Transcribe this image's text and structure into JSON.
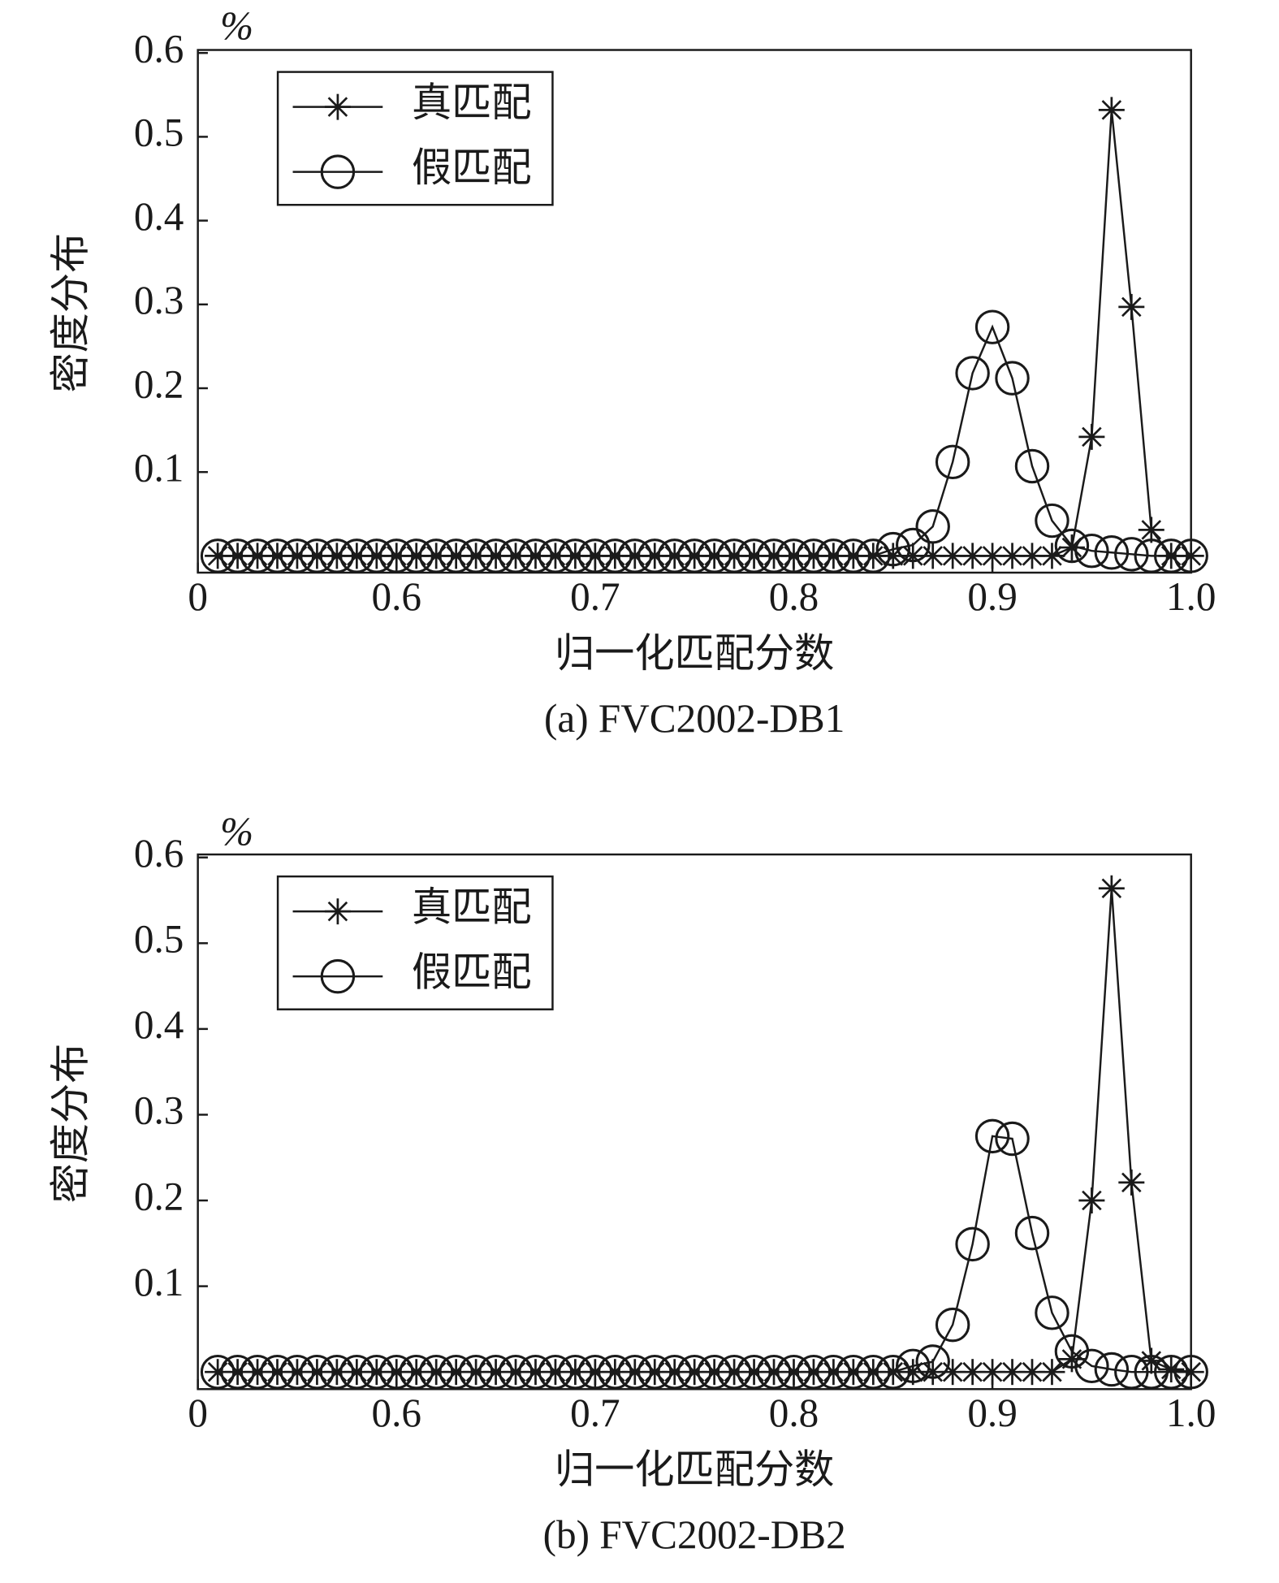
{
  "chart_data": [
    {
      "type": "line",
      "title": "(a) FVC2002-DB1",
      "unit_label": "%",
      "ylabel": "密度分布",
      "xlabel": "归一化匹配分数",
      "x": [
        0.51,
        0.52,
        0.53,
        0.54,
        0.55,
        0.56,
        0.57,
        0.58,
        0.59,
        0.6,
        0.61,
        0.62,
        0.63,
        0.64,
        0.65,
        0.66,
        0.67,
        0.68,
        0.69,
        0.7,
        0.71,
        0.72,
        0.73,
        0.74,
        0.75,
        0.76,
        0.77,
        0.78,
        0.79,
        0.8,
        0.81,
        0.82,
        0.83,
        0.84,
        0.85,
        0.86,
        0.87,
        0.88,
        0.89,
        0.9,
        0.91,
        0.92,
        0.93,
        0.94,
        0.95,
        0.96,
        0.97,
        0.98,
        0.99,
        1
      ],
      "series": [
        {
          "name": "真匹配",
          "marker": "star",
          "color": "#1a1a1a",
          "values": [
            0,
            0,
            0,
            0,
            0,
            0,
            0,
            0,
            0,
            0,
            0,
            0,
            0,
            0,
            0,
            0,
            0,
            0,
            0,
            0,
            0,
            0,
            0,
            0,
            0,
            0,
            0,
            0,
            0,
            0,
            0,
            0,
            0,
            0,
            0,
            0,
            0,
            0,
            0,
            0,
            0,
            0,
            0,
            0.01,
            0.142,
            0.532,
            0.297,
            0.031,
            0,
            0
          ]
        },
        {
          "name": "假匹配",
          "marker": "circle",
          "color": "#1a1a1a",
          "values": [
            0,
            0,
            0,
            0,
            0,
            0,
            0,
            0,
            0,
            0,
            0,
            0,
            0,
            0,
            0,
            0,
            0,
            0,
            0,
            0,
            0,
            0,
            0,
            0,
            0,
            0,
            0,
            0,
            0,
            0,
            0,
            0,
            0,
            0,
            0.008,
            0.013,
            0.035,
            0.112,
            0.218,
            0.273,
            0.212,
            0.107,
            0.042,
            0.012,
            0.006,
            0.004,
            0.002,
            0,
            0,
            0
          ]
        }
      ],
      "xlim": [
        0.5,
        1.0
      ],
      "xticks": [
        {
          "value": 0.5,
          "label": "0"
        },
        0.6,
        0.7,
        0.8,
        0.9,
        {
          "value": 1.0,
          "label": "1.0"
        }
      ],
      "ylim": [
        -0.02,
        0.6
      ],
      "yticks": [
        0.1,
        0.2,
        0.3,
        0.4,
        0.5,
        0.6
      ],
      "legend": "upper left"
    },
    {
      "type": "line",
      "title": "(b) FVC2002-DB2",
      "unit_label": "%",
      "ylabel": "密度分布",
      "xlabel": "归一化匹配分数",
      "x": [
        0.51,
        0.52,
        0.53,
        0.54,
        0.55,
        0.56,
        0.57,
        0.58,
        0.59,
        0.6,
        0.61,
        0.62,
        0.63,
        0.64,
        0.65,
        0.66,
        0.67,
        0.68,
        0.69,
        0.7,
        0.71,
        0.72,
        0.73,
        0.74,
        0.75,
        0.76,
        0.77,
        0.78,
        0.79,
        0.8,
        0.81,
        0.82,
        0.83,
        0.84,
        0.85,
        0.86,
        0.87,
        0.88,
        0.89,
        0.9,
        0.91,
        0.92,
        0.93,
        0.94,
        0.95,
        0.96,
        0.97,
        0.98,
        0.99,
        1
      ],
      "series": [
        {
          "name": "真匹配",
          "marker": "star",
          "color": "#1a1a1a",
          "values": [
            0,
            0,
            0,
            0,
            0,
            0,
            0,
            0,
            0,
            0,
            0,
            0,
            0,
            0,
            0,
            0,
            0,
            0,
            0,
            0,
            0,
            0,
            0,
            0,
            0,
            0,
            0,
            0,
            0,
            0,
            0,
            0,
            0,
            0,
            0,
            0,
            0,
            0,
            0,
            0,
            0,
            0,
            0,
            0.015,
            0.2,
            0.564,
            0.221,
            0.013,
            0.003,
            0
          ]
        },
        {
          "name": "假匹配",
          "marker": "circle",
          "color": "#1a1a1a",
          "values": [
            0,
            0,
            0,
            0,
            0,
            0,
            0,
            0,
            0,
            0,
            0,
            0,
            0,
            0,
            0,
            0,
            0,
            0,
            0,
            0,
            0,
            0,
            0,
            0,
            0,
            0,
            0,
            0,
            0,
            0,
            0,
            0,
            0,
            0,
            0,
            0.007,
            0.012,
            0.055,
            0.149,
            0.275,
            0.272,
            0.162,
            0.069,
            0.024,
            0.007,
            0.003,
            0,
            0,
            0,
            0
          ]
        }
      ],
      "xlim": [
        0.5,
        1.0
      ],
      "xticks": [
        {
          "value": 0.5,
          "label": "0"
        },
        0.6,
        0.7,
        0.8,
        0.9,
        {
          "value": 1.0,
          "label": "1.0"
        }
      ],
      "ylim": [
        -0.02,
        0.6
      ],
      "yticks": [
        0.1,
        0.2,
        0.3,
        0.4,
        0.5,
        0.6
      ],
      "legend": "upper left"
    }
  ]
}
